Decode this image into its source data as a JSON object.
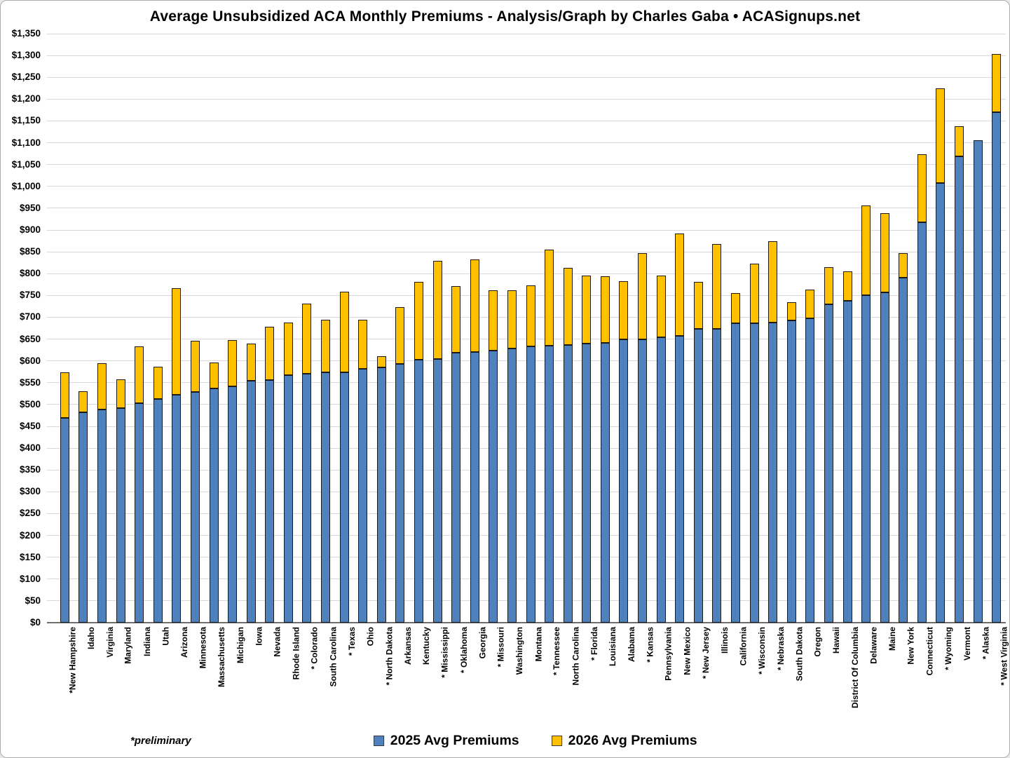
{
  "title": "Average Unsubsidized ACA Monthly Premiums - Analysis/Graph by Charles Gaba • ACASignups.net",
  "footnote": "*preliminary",
  "colors": {
    "background": "#FFFFFF",
    "grid": "#D9D9D9",
    "axis": "#6E6E6E",
    "bar_border": "#1A1A1A",
    "text": "#000000",
    "blue_2025": "#4F81BD",
    "gold_2026": "#FFC000"
  },
  "chart_data": {
    "type": "bar",
    "stacked": true,
    "title": "Average Unsubsidized ACA Monthly Premiums - Analysis/Graph by Charles Gaba • ACASignups.net",
    "xlabel": "",
    "ylabel": "",
    "ylim": [
      0,
      1350
    ],
    "ytick_step": 50,
    "ytick_prefix": "$",
    "grid": true,
    "legend_position": "bottom",
    "annotations": [
      "*preliminary"
    ],
    "series_encoding": "Blue bar height = 2025 average premium; gold segment extends from the 2025 value up to the 2026 average premium (2026 series values are bar totals). Asterisked states are preliminary.",
    "categories": [
      "*New Hampshire",
      "Idaho",
      "Virginia",
      "Maryland",
      "Indiana",
      "Utah",
      "Arizona",
      "Minnesota",
      "Massachusetts",
      "Michigan",
      "Iowa",
      "Nevada",
      "Rhode Island",
      "* Colorado",
      "South Carolina",
      "* Texas",
      "Ohio",
      "* North Dakota",
      "Arkansas",
      "Kentucky",
      "* Mississippi",
      "* Oklahoma",
      "Georgia",
      "* Missouri",
      "Washington",
      "Montana",
      "* Tennessee",
      "North Carolina",
      "* Florida",
      "Louisiana",
      "Alabama",
      "* Kansas",
      "Pennsylvania",
      "New Mexico",
      "* New Jersey",
      "Illinois",
      "California",
      "* Wisconsin",
      "* Nebraska",
      "South Dakota",
      "Oregon",
      "Hawaii",
      "District Of Columbia",
      "Delaware",
      "Maine",
      "New York",
      "Connecticut",
      "* Wyoming",
      "Vermont",
      "* Alaska",
      "* West Virginia"
    ],
    "series": [
      {
        "name": "2025 Avg Premiums",
        "color": "#4F81BD",
        "values": [
          469,
          482,
          489,
          491,
          503,
          513,
          522,
          529,
          536,
          541,
          554,
          556,
          567,
          570,
          573,
          574,
          581,
          585,
          593,
          602,
          605,
          618,
          621,
          623,
          628,
          634,
          635,
          637,
          640,
          642,
          649,
          650,
          654,
          658,
          673,
          674,
          686,
          687,
          688,
          692,
          697,
          729,
          737,
          750,
          757,
          791,
          918,
          1007,
          1068,
          1105,
          1170
        ]
      },
      {
        "name": "2026 Avg Premiums",
        "color": "#FFC000",
        "values": [
          573,
          531,
          594,
          557,
          634,
          586,
          767,
          646,
          597,
          648,
          640,
          679,
          688,
          731,
          695,
          759,
          695,
          611,
          723,
          781,
          829,
          772,
          833,
          762,
          761,
          773,
          855,
          813,
          796,
          794,
          783,
          847,
          796,
          892,
          781,
          868,
          756,
          823,
          875,
          735,
          764,
          815,
          805,
          956,
          938,
          847,
          1073,
          1225,
          1138,
          1105,
          1303
        ]
      }
    ]
  }
}
